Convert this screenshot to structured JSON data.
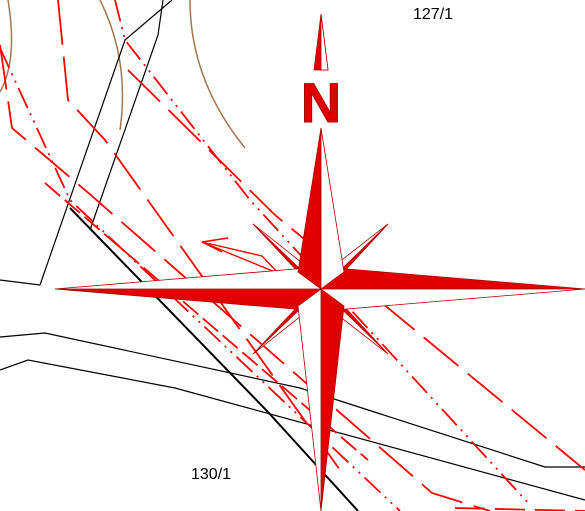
{
  "map": {
    "parcels": [
      {
        "id": "parcel-127-1",
        "label": "127/1"
      },
      {
        "id": "parcel-130-1",
        "label": "130/1"
      }
    ],
    "compass": {
      "north_label": "N",
      "color": "#e00000"
    },
    "colors": {
      "parcel_boundary": "#000000",
      "survey_line": "#ff0000",
      "contour": "#a07850",
      "background": "#ffffff"
    }
  }
}
